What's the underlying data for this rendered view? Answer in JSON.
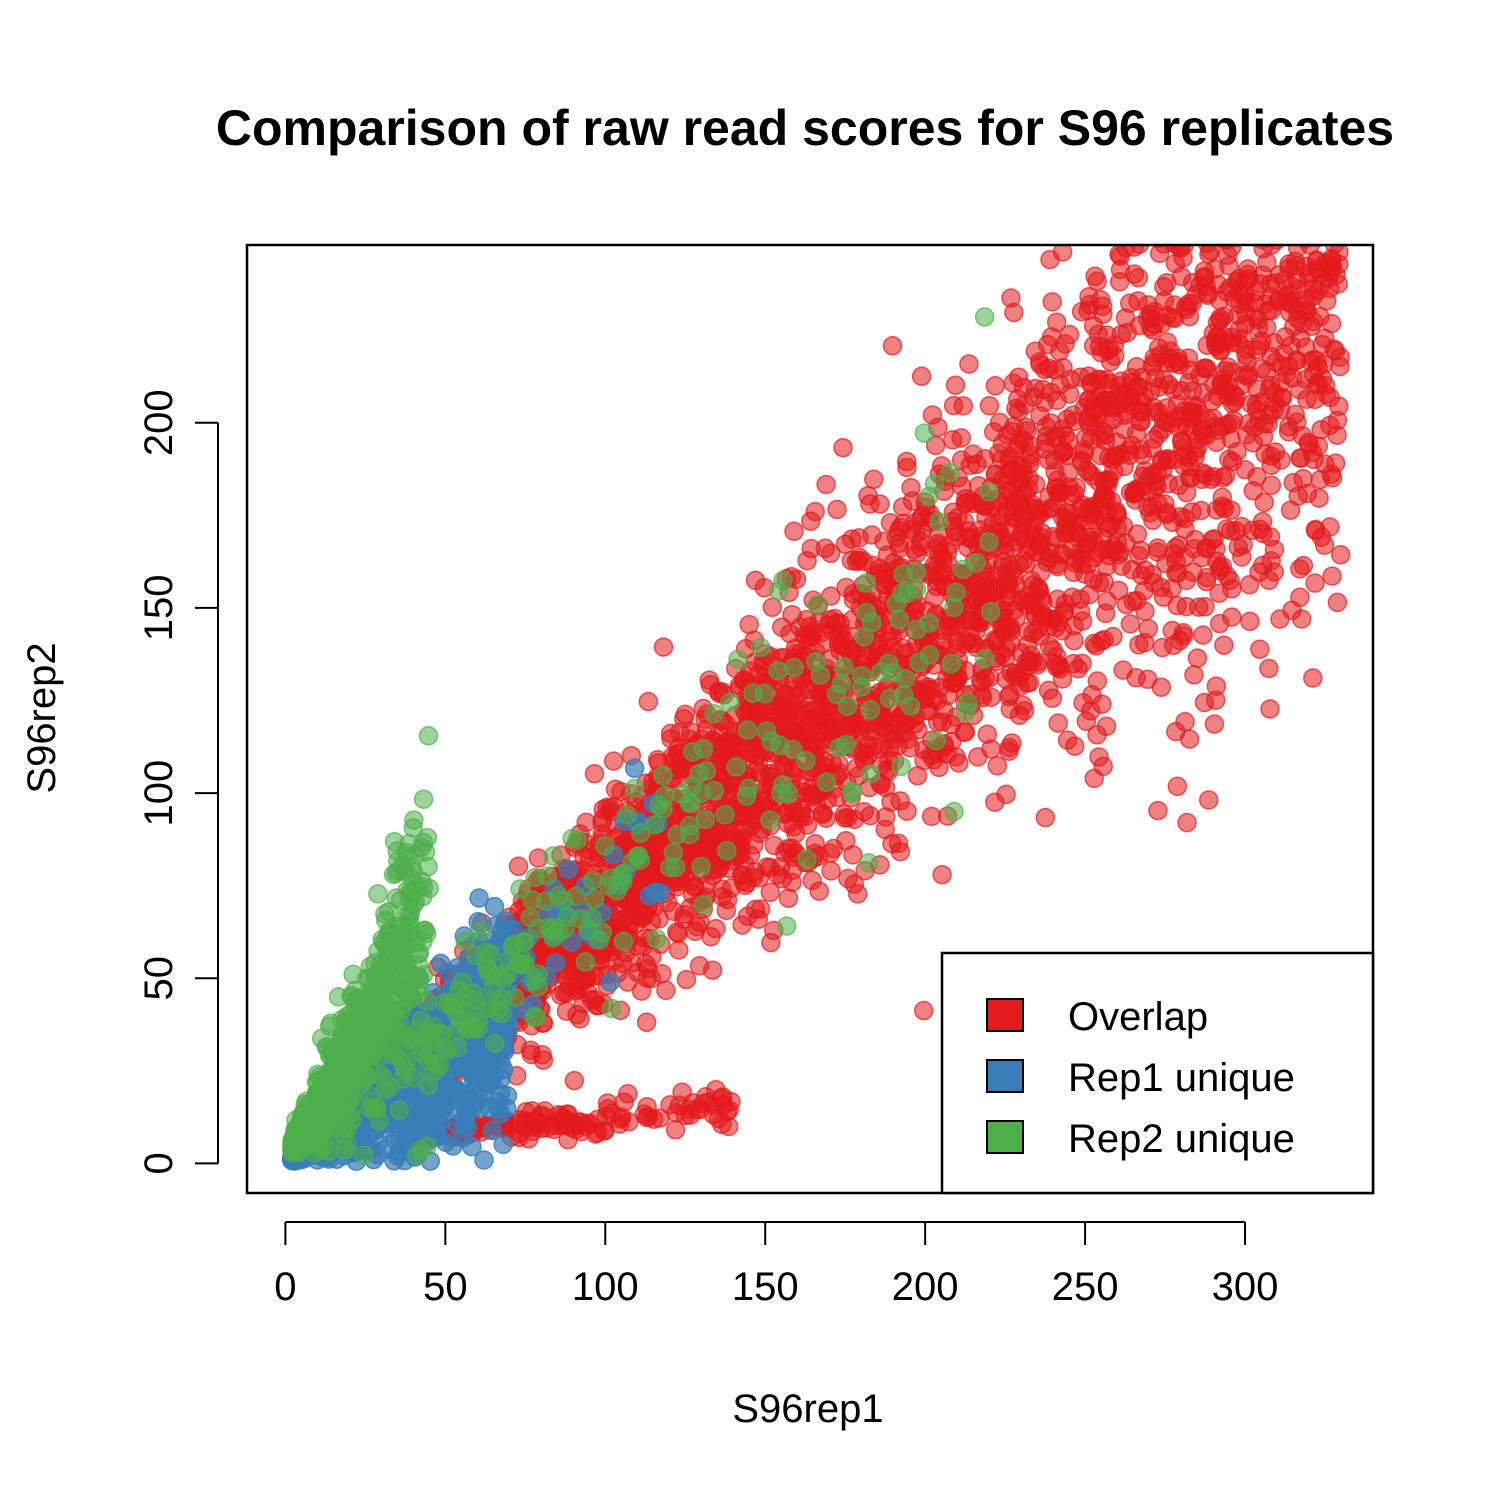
{
  "chart_data": {
    "type": "scatter",
    "title": "Comparison of raw read scores for S96 replicates",
    "xlabel": "S96rep1",
    "ylabel": "S96rep2",
    "xlim": [
      -12,
      340
    ],
    "ylim": [
      -8,
      248
    ],
    "x_ticks": [
      0,
      50,
      100,
      150,
      200,
      250,
      300
    ],
    "y_ticks": [
      0,
      50,
      100,
      150,
      200
    ],
    "grid": false,
    "legend_position": "bottom-right",
    "series": [
      {
        "name": "Overlap",
        "color": "#E41A1C",
        "opacity": 0.55,
        "bands": [
          {
            "x_start": 5,
            "x_end": 330,
            "slope": 0.72,
            "intercept": 0,
            "spread": 0.17,
            "count": 4200
          },
          {
            "x_start": 40,
            "x_end": 140,
            "slope": 0.07,
            "intercept": 5,
            "spread": 0.3,
            "count": 160
          }
        ]
      },
      {
        "name": "Rep1 unique",
        "color": "#377EB8",
        "opacity": 0.7,
        "bands": [
          {
            "x_start": 2,
            "x_end": 70,
            "slope": 0.6,
            "intercept": 0,
            "spread": 0.35,
            "count": 1200
          },
          {
            "x_start": 70,
            "x_end": 118,
            "slope": 0.75,
            "intercept": 0,
            "spread": 0.18,
            "count": 40
          }
        ]
      },
      {
        "name": "Rep2 unique",
        "color": "#4DAF4A",
        "opacity": 0.55,
        "bands": [
          {
            "x_start": 2,
            "x_end": 45,
            "slope": 1.35,
            "intercept": 2,
            "spread": 0.35,
            "count": 600
          },
          {
            "x_start": 45,
            "x_end": 225,
            "slope": 0.74,
            "intercept": 0,
            "spread": 0.16,
            "count": 220
          }
        ]
      }
    ]
  },
  "legend": {
    "items": [
      {
        "label": "Overlap",
        "color": "#E41A1C"
      },
      {
        "label": "Rep1 unique",
        "color": "#377EB8"
      },
      {
        "label": "Rep2 unique",
        "color": "#4DAF4A"
      }
    ]
  }
}
